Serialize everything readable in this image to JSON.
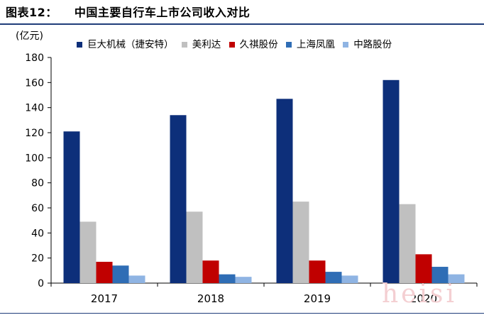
{
  "figure_label": "图表12：",
  "chart_data": {
    "type": "bar",
    "title": "中国主要自行车上市公司收入对比",
    "ylabel": "(亿元)",
    "xlabel": "",
    "ylim": [
      0,
      180
    ],
    "yticks": [
      0,
      20,
      40,
      60,
      80,
      100,
      120,
      140,
      160,
      180
    ],
    "categories": [
      "2017",
      "2018",
      "2019",
      "2020"
    ],
    "series": [
      {
        "name": "巨大机械（捷安特）",
        "color": "#0d2f7a",
        "values": [
          121,
          134,
          147,
          162
        ]
      },
      {
        "name": "美利达",
        "color": "#c0c0c0",
        "values": [
          49,
          57,
          65,
          63
        ]
      },
      {
        "name": "久祺股份",
        "color": "#c00000",
        "values": [
          17,
          18,
          18,
          23
        ]
      },
      {
        "name": "上海凤凰",
        "color": "#2f6db5",
        "values": [
          14,
          7,
          9,
          13
        ]
      },
      {
        "name": "中路股份",
        "color": "#8fb4e3",
        "values": [
          6,
          5,
          6,
          7
        ]
      }
    ],
    "grid": false,
    "legend_position": "top"
  },
  "watermark": "heisi"
}
